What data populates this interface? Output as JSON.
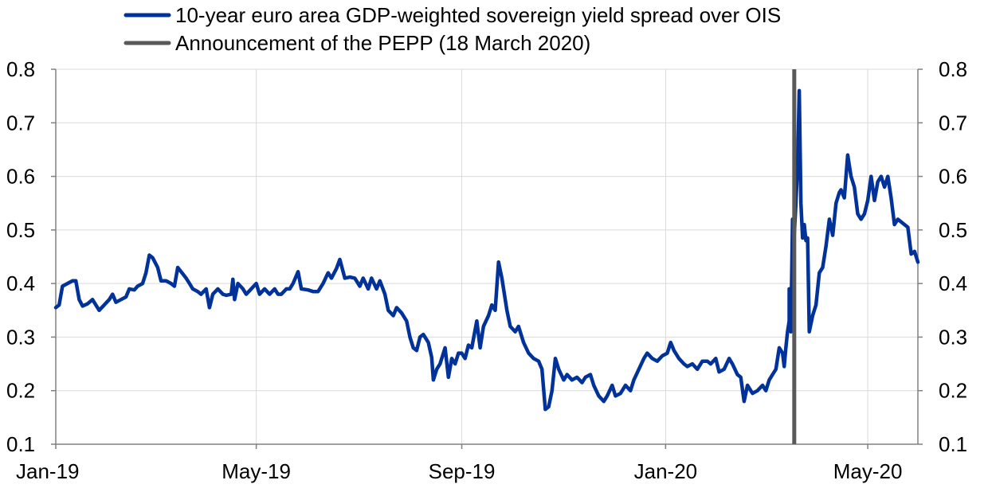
{
  "chart_data": {
    "type": "line",
    "title": "",
    "xlabel": "",
    "ylabel": "",
    "ylim": [
      0.1,
      0.8
    ],
    "y_ticks": [
      "0.8",
      "0.7",
      "0.6",
      "0.5",
      "0.4",
      "0.3",
      "0.2",
      "0.1"
    ],
    "y_tick_values": [
      0.8,
      0.7,
      0.6,
      0.5,
      0.4,
      0.3,
      0.2,
      0.1
    ],
    "right_axis_mirrors_left": true,
    "x_range": [
      "2019-01-01",
      "2020-05-31"
    ],
    "x_ticks": [
      "Jan-19",
      "May-19",
      "Sep-19",
      "Jan-20",
      "May-20"
    ],
    "x_tick_dates": [
      "2019-01-01",
      "2019-05-01",
      "2019-09-01",
      "2020-01-01",
      "2020-05-01"
    ],
    "grid": "vertical and horizontal",
    "legend_position": "top",
    "series": [
      {
        "name": "10-year euro area GDP-weighted sovereign yield spread over OIS",
        "color": "#003299",
        "points": [
          [
            "2019-01-01",
            0.355
          ],
          [
            "2019-01-03",
            0.36
          ],
          [
            "2019-01-05",
            0.395
          ],
          [
            "2019-01-08",
            0.4
          ],
          [
            "2019-01-11",
            0.405
          ],
          [
            "2019-01-13",
            0.405
          ],
          [
            "2019-01-15",
            0.37
          ],
          [
            "2019-01-17",
            0.358
          ],
          [
            "2019-01-20",
            0.362
          ],
          [
            "2019-01-23",
            0.37
          ],
          [
            "2019-01-25",
            0.36
          ],
          [
            "2019-01-27",
            0.35
          ],
          [
            "2019-01-30",
            0.36
          ],
          [
            "2019-02-02",
            0.37
          ],
          [
            "2019-02-04",
            0.38
          ],
          [
            "2019-02-06",
            0.365
          ],
          [
            "2019-02-09",
            0.37
          ],
          [
            "2019-02-12",
            0.375
          ],
          [
            "2019-02-14",
            0.39
          ],
          [
            "2019-02-17",
            0.388
          ],
          [
            "2019-02-19",
            0.395
          ],
          [
            "2019-02-22",
            0.4
          ],
          [
            "2019-02-24",
            0.42
          ],
          [
            "2019-02-26",
            0.453
          ],
          [
            "2019-02-28",
            0.448
          ],
          [
            "2019-03-03",
            0.43
          ],
          [
            "2019-03-05",
            0.405
          ],
          [
            "2019-03-08",
            0.405
          ],
          [
            "2019-03-11",
            0.4
          ],
          [
            "2019-03-13",
            0.395
          ],
          [
            "2019-03-15",
            0.43
          ],
          [
            "2019-03-18",
            0.418
          ],
          [
            "2019-03-20",
            0.41
          ],
          [
            "2019-03-22",
            0.4
          ],
          [
            "2019-03-24",
            0.39
          ],
          [
            "2019-03-27",
            0.385
          ],
          [
            "2019-03-29",
            0.38
          ],
          [
            "2019-04-01",
            0.39
          ],
          [
            "2019-04-03",
            0.355
          ],
          [
            "2019-04-05",
            0.38
          ],
          [
            "2019-04-08",
            0.39
          ],
          [
            "2019-04-11",
            0.38
          ],
          [
            "2019-04-13",
            0.378
          ],
          [
            "2019-04-16",
            0.38
          ],
          [
            "2019-04-17",
            0.408
          ],
          [
            "2019-04-18",
            0.37
          ],
          [
            "2019-04-20",
            0.4
          ],
          [
            "2019-04-23",
            0.39
          ],
          [
            "2019-04-25",
            0.38
          ],
          [
            "2019-04-28",
            0.39
          ],
          [
            "2019-05-01",
            0.4
          ],
          [
            "2019-05-03",
            0.38
          ],
          [
            "2019-05-06",
            0.39
          ],
          [
            "2019-05-09",
            0.38
          ],
          [
            "2019-05-12",
            0.39
          ],
          [
            "2019-05-14",
            0.38
          ],
          [
            "2019-05-16",
            0.38
          ],
          [
            "2019-05-19",
            0.39
          ],
          [
            "2019-05-21",
            0.39
          ],
          [
            "2019-05-23",
            0.4
          ],
          [
            "2019-05-26",
            0.422
          ],
          [
            "2019-05-28",
            0.39
          ],
          [
            "2019-06-01",
            0.388
          ],
          [
            "2019-06-04",
            0.385
          ],
          [
            "2019-06-07",
            0.385
          ],
          [
            "2019-06-10",
            0.4
          ],
          [
            "2019-06-13",
            0.42
          ],
          [
            "2019-06-15",
            0.41
          ],
          [
            "2019-06-18",
            0.428
          ],
          [
            "2019-06-20",
            0.445
          ],
          [
            "2019-06-23",
            0.41
          ],
          [
            "2019-06-26",
            0.412
          ],
          [
            "2019-06-29",
            0.41
          ],
          [
            "2019-07-02",
            0.395
          ],
          [
            "2019-07-04",
            0.41
          ],
          [
            "2019-07-07",
            0.39
          ],
          [
            "2019-07-09",
            0.41
          ],
          [
            "2019-07-12",
            0.39
          ],
          [
            "2019-07-14",
            0.405
          ],
          [
            "2019-07-17",
            0.38
          ],
          [
            "2019-07-19",
            0.35
          ],
          [
            "2019-07-22",
            0.34
          ],
          [
            "2019-07-24",
            0.355
          ],
          [
            "2019-07-27",
            0.345
          ],
          [
            "2019-07-30",
            0.33
          ],
          [
            "2019-08-01",
            0.3
          ],
          [
            "2019-08-03",
            0.28
          ],
          [
            "2019-08-05",
            0.275
          ],
          [
            "2019-08-07",
            0.3
          ],
          [
            "2019-08-09",
            0.305
          ],
          [
            "2019-08-12",
            0.29
          ],
          [
            "2019-08-14",
            0.262
          ],
          [
            "2019-08-15",
            0.22
          ],
          [
            "2019-08-17",
            0.24
          ],
          [
            "2019-08-19",
            0.25
          ],
          [
            "2019-08-22",
            0.28
          ],
          [
            "2019-08-24",
            0.225
          ],
          [
            "2019-08-26",
            0.26
          ],
          [
            "2019-08-28",
            0.25
          ],
          [
            "2019-08-30",
            0.27
          ],
          [
            "2019-09-01",
            0.27
          ],
          [
            "2019-09-03",
            0.26
          ],
          [
            "2019-09-05",
            0.285
          ],
          [
            "2019-09-07",
            0.28
          ],
          [
            "2019-09-10",
            0.33
          ],
          [
            "2019-09-12",
            0.28
          ],
          [
            "2019-09-14",
            0.32
          ],
          [
            "2019-09-17",
            0.34
          ],
          [
            "2019-09-19",
            0.36
          ],
          [
            "2019-09-21",
            0.35
          ],
          [
            "2019-09-23",
            0.44
          ],
          [
            "2019-09-25",
            0.41
          ],
          [
            "2019-09-28",
            0.35
          ],
          [
            "2019-09-30",
            0.32
          ],
          [
            "2019-10-03",
            0.31
          ],
          [
            "2019-10-05",
            0.32
          ],
          [
            "2019-10-08",
            0.29
          ],
          [
            "2019-10-11",
            0.27
          ],
          [
            "2019-10-14",
            0.26
          ],
          [
            "2019-10-17",
            0.255
          ],
          [
            "2019-10-19",
            0.24
          ],
          [
            "2019-10-21",
            0.165
          ],
          [
            "2019-10-23",
            0.17
          ],
          [
            "2019-10-25",
            0.2
          ],
          [
            "2019-10-27",
            0.26
          ],
          [
            "2019-10-29",
            0.24
          ],
          [
            "2019-11-01",
            0.22
          ],
          [
            "2019-11-03",
            0.23
          ],
          [
            "2019-11-06",
            0.22
          ],
          [
            "2019-11-09",
            0.225
          ],
          [
            "2019-11-12",
            0.215
          ],
          [
            "2019-11-14",
            0.225
          ],
          [
            "2019-11-17",
            0.23
          ],
          [
            "2019-11-19",
            0.21
          ],
          [
            "2019-11-22",
            0.19
          ],
          [
            "2019-11-25",
            0.18
          ],
          [
            "2019-11-27",
            0.19
          ],
          [
            "2019-11-30",
            0.21
          ],
          [
            "2019-12-02",
            0.19
          ],
          [
            "2019-12-05",
            0.195
          ],
          [
            "2019-12-08",
            0.21
          ],
          [
            "2019-12-11",
            0.2
          ],
          [
            "2019-12-13",
            0.22
          ],
          [
            "2019-12-16",
            0.24
          ],
          [
            "2019-12-19",
            0.26
          ],
          [
            "2019-12-21",
            0.27
          ],
          [
            "2019-12-24",
            0.26
          ],
          [
            "2019-12-27",
            0.255
          ],
          [
            "2019-12-30",
            0.265
          ],
          [
            "2020-01-02",
            0.27
          ],
          [
            "2020-01-04",
            0.29
          ],
          [
            "2020-01-06",
            0.275
          ],
          [
            "2020-01-09",
            0.26
          ],
          [
            "2020-01-12",
            0.25
          ],
          [
            "2020-01-14",
            0.245
          ],
          [
            "2020-01-17",
            0.25
          ],
          [
            "2020-01-20",
            0.24
          ],
          [
            "2020-01-23",
            0.255
          ],
          [
            "2020-01-26",
            0.255
          ],
          [
            "2020-01-28",
            0.25
          ],
          [
            "2020-01-31",
            0.26
          ],
          [
            "2020-02-02",
            0.235
          ],
          [
            "2020-02-05",
            0.24
          ],
          [
            "2020-02-08",
            0.26
          ],
          [
            "2020-02-10",
            0.25
          ],
          [
            "2020-02-13",
            0.23
          ],
          [
            "2020-02-15",
            0.225
          ],
          [
            "2020-02-17",
            0.18
          ],
          [
            "2020-02-19",
            0.21
          ],
          [
            "2020-02-22",
            0.195
          ],
          [
            "2020-02-25",
            0.2
          ],
          [
            "2020-02-28",
            0.21
          ],
          [
            "2020-03-01",
            0.2
          ],
          [
            "2020-03-03",
            0.22
          ],
          [
            "2020-03-05",
            0.23
          ],
          [
            "2020-03-07",
            0.24
          ],
          [
            "2020-03-09",
            0.28
          ],
          [
            "2020-03-11",
            0.27
          ],
          [
            "2020-03-12",
            0.245
          ],
          [
            "2020-03-13",
            0.28
          ],
          [
            "2020-03-14",
            0.31
          ],
          [
            "2020-03-15",
            0.33
          ],
          [
            "2020-03-15",
            0.39
          ],
          [
            "2020-03-16",
            0.31
          ],
          [
            "2020-03-17",
            0.52
          ],
          [
            "2020-03-18",
            0.49
          ],
          [
            "2020-03-19",
            0.55
          ],
          [
            "2020-03-20",
            0.62
          ],
          [
            "2020-03-21",
            0.76
          ],
          [
            "2020-03-22",
            0.55
          ],
          [
            "2020-03-23",
            0.485
          ],
          [
            "2020-03-24",
            0.51
          ],
          [
            "2020-03-25",
            0.48
          ],
          [
            "2020-03-26",
            0.485
          ],
          [
            "2020-03-27",
            0.31
          ],
          [
            "2020-03-29",
            0.34
          ],
          [
            "2020-03-31",
            0.36
          ],
          [
            "2020-04-02",
            0.42
          ],
          [
            "2020-04-04",
            0.43
          ],
          [
            "2020-04-06",
            0.47
          ],
          [
            "2020-04-08",
            0.52
          ],
          [
            "2020-04-10",
            0.49
          ],
          [
            "2020-04-12",
            0.55
          ],
          [
            "2020-04-14",
            0.57
          ],
          [
            "2020-04-15",
            0.575
          ],
          [
            "2020-04-17",
            0.56
          ],
          [
            "2020-04-19",
            0.64
          ],
          [
            "2020-04-21",
            0.6
          ],
          [
            "2020-04-23",
            0.58
          ],
          [
            "2020-04-25",
            0.53
          ],
          [
            "2020-04-27",
            0.52
          ],
          [
            "2020-04-29",
            0.53
          ],
          [
            "2020-05-01",
            0.555
          ],
          [
            "2020-05-03",
            0.6
          ],
          [
            "2020-05-05",
            0.555
          ],
          [
            "2020-05-07",
            0.59
          ],
          [
            "2020-05-09",
            0.6
          ],
          [
            "2020-05-11",
            0.58
          ],
          [
            "2020-05-13",
            0.6
          ],
          [
            "2020-05-15",
            0.56
          ],
          [
            "2020-05-17",
            0.51
          ],
          [
            "2020-05-19",
            0.52
          ],
          [
            "2020-05-21",
            0.515
          ],
          [
            "2020-05-23",
            0.51
          ],
          [
            "2020-05-25",
            0.505
          ],
          [
            "2020-05-27",
            0.455
          ],
          [
            "2020-05-29",
            0.46
          ],
          [
            "2020-05-31",
            0.44
          ]
        ]
      }
    ],
    "annotations": [
      {
        "name": "Announcement of the PEPP (18 March 2020)",
        "type": "vertical_line",
        "x": "2020-03-18",
        "color": "#595959"
      }
    ]
  }
}
